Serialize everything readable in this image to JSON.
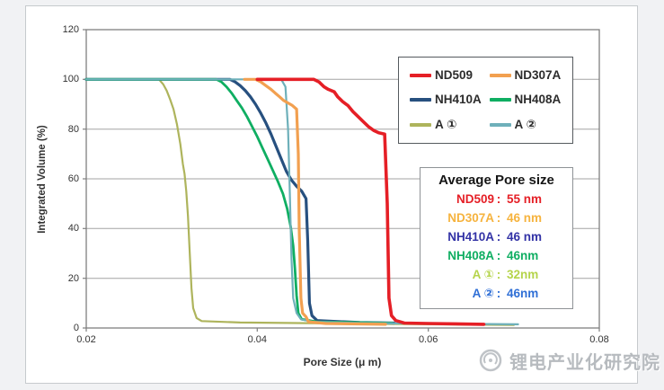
{
  "page": {
    "background": "#f1f2f4",
    "panel_background": "#ffffff"
  },
  "watermark": {
    "text": "锂电产业化研究院",
    "color": "#b7bbbf",
    "logo": "circular-swirl-emblem"
  },
  "chart_data": {
    "type": "line",
    "title": "",
    "xlabel": "Pore Size (μ m)",
    "ylabel": "Integrated Volume (%)",
    "xlim": [
      0.02,
      0.08
    ],
    "ylim": [
      0,
      120
    ],
    "x_ticks": [
      0.02,
      0.04,
      0.06,
      0.08
    ],
    "x_tick_labels": [
      "0.02",
      "0.04",
      "0.06",
      "0.08"
    ],
    "y_ticks": [
      0,
      20,
      40,
      60,
      80,
      100,
      120
    ],
    "y_tick_labels": [
      "0",
      "20",
      "40",
      "60",
      "80",
      "100",
      "120"
    ],
    "grid": "horizontal-only",
    "legend_position": "top-right-inside",
    "series": [
      {
        "name": "A ①",
        "color": "#aeb45c",
        "width": 2.2,
        "points": [
          [
            0.02,
            100
          ],
          [
            0.0285,
            100
          ],
          [
            0.029,
            98
          ],
          [
            0.0294,
            95.5
          ],
          [
            0.0298,
            92
          ],
          [
            0.0302,
            88
          ],
          [
            0.0306,
            82
          ],
          [
            0.031,
            74
          ],
          [
            0.0313,
            66
          ],
          [
            0.0315,
            62
          ],
          [
            0.0317,
            55
          ],
          [
            0.0319,
            45
          ],
          [
            0.0321,
            30
          ],
          [
            0.0323,
            16
          ],
          [
            0.0325,
            8
          ],
          [
            0.0329,
            4
          ],
          [
            0.0335,
            2.8
          ],
          [
            0.038,
            2.2
          ],
          [
            0.05,
            1.8
          ],
          [
            0.07,
            1.2
          ]
        ]
      },
      {
        "name": "NH410A",
        "color": "#27507f",
        "width": 3.2,
        "points": [
          [
            0.02,
            100
          ],
          [
            0.0368,
            100
          ],
          [
            0.0374,
            99
          ],
          [
            0.038,
            97.5
          ],
          [
            0.0386,
            95.5
          ],
          [
            0.0392,
            93
          ],
          [
            0.0398,
            90
          ],
          [
            0.0404,
            86.5
          ],
          [
            0.041,
            82.5
          ],
          [
            0.0416,
            78
          ],
          [
            0.0422,
            73
          ],
          [
            0.0428,
            68
          ],
          [
            0.0434,
            63
          ],
          [
            0.044,
            59.5
          ],
          [
            0.0446,
            57
          ],
          [
            0.0452,
            55
          ],
          [
            0.0457,
            52
          ],
          [
            0.0459,
            35
          ],
          [
            0.0461,
            10
          ],
          [
            0.0464,
            5
          ],
          [
            0.047,
            3
          ],
          [
            0.052,
            2.2
          ],
          [
            0.056,
            2
          ]
        ]
      },
      {
        "name": "NH408A",
        "color": "#0fae62",
        "width": 2.8,
        "points": [
          [
            0.02,
            100
          ],
          [
            0.0352,
            100
          ],
          [
            0.0358,
            99
          ],
          [
            0.0364,
            97
          ],
          [
            0.037,
            94.5
          ],
          [
            0.0376,
            91.5
          ],
          [
            0.0382,
            88.5
          ],
          [
            0.0388,
            85
          ],
          [
            0.0394,
            81
          ],
          [
            0.04,
            77
          ],
          [
            0.0406,
            72.5
          ],
          [
            0.0412,
            68
          ],
          [
            0.0418,
            63.5
          ],
          [
            0.0424,
            59
          ],
          [
            0.043,
            54
          ],
          [
            0.0435,
            48
          ],
          [
            0.0439,
            41
          ],
          [
            0.0442,
            33
          ],
          [
            0.0444,
            24
          ],
          [
            0.0446,
            13
          ],
          [
            0.0448,
            6
          ],
          [
            0.0452,
            3.5
          ],
          [
            0.047,
            2.5
          ],
          [
            0.0558,
            2
          ]
        ]
      },
      {
        "name": "A ②",
        "color": "#6eb0ba",
        "width": 2.2,
        "points": [
          [
            0.02,
            100
          ],
          [
            0.0428,
            100
          ],
          [
            0.0433,
            97
          ],
          [
            0.0436,
            80
          ],
          [
            0.0438,
            55
          ],
          [
            0.044,
            28
          ],
          [
            0.0442,
            12
          ],
          [
            0.0446,
            6
          ],
          [
            0.0451,
            3.5
          ],
          [
            0.0465,
            2.5
          ],
          [
            0.052,
            2
          ],
          [
            0.0705,
            1.5
          ]
        ]
      },
      {
        "name": "ND307A",
        "color": "#f2a050",
        "width": 3.2,
        "points": [
          [
            0.0385,
            100
          ],
          [
            0.0398,
            100
          ],
          [
            0.0404,
            99
          ],
          [
            0.041,
            97.5
          ],
          [
            0.0416,
            96
          ],
          [
            0.0421,
            94.5
          ],
          [
            0.0426,
            93
          ],
          [
            0.0431,
            91.5
          ],
          [
            0.0436,
            90.5
          ],
          [
            0.0441,
            89.5
          ],
          [
            0.0446,
            88
          ],
          [
            0.0448,
            70
          ],
          [
            0.0449,
            40
          ],
          [
            0.0451,
            12
          ],
          [
            0.0453,
            6
          ],
          [
            0.0457,
            4.5
          ],
          [
            0.046,
            2.5
          ],
          [
            0.048,
            1.8
          ],
          [
            0.055,
            1.5
          ]
        ]
      },
      {
        "name": "ND509",
        "color": "#e51f26",
        "width": 3.6,
        "points": [
          [
            0.04,
            100
          ],
          [
            0.0466,
            100
          ],
          [
            0.0472,
            99
          ],
          [
            0.0478,
            97
          ],
          [
            0.0483,
            96
          ],
          [
            0.049,
            95
          ],
          [
            0.0494,
            93
          ],
          [
            0.05,
            91
          ],
          [
            0.0506,
            89.5
          ],
          [
            0.0512,
            87
          ],
          [
            0.0518,
            85
          ],
          [
            0.0524,
            83
          ],
          [
            0.053,
            81
          ],
          [
            0.0536,
            79.5
          ],
          [
            0.0542,
            78.5
          ],
          [
            0.0549,
            78
          ],
          [
            0.0552,
            50
          ],
          [
            0.0554,
            12
          ],
          [
            0.0557,
            5
          ],
          [
            0.0562,
            3
          ],
          [
            0.0572,
            2
          ],
          [
            0.06,
            1.8
          ],
          [
            0.0665,
            1.5
          ]
        ]
      }
    ],
    "legend_entries": [
      "ND509",
      "ND307A",
      "NH410A",
      "NH408A",
      "A ①",
      "A ②"
    ],
    "legend_colors": [
      "#e51f26",
      "#f2a050",
      "#27507f",
      "#0fae62",
      "#aeb45c",
      "#6eb0ba"
    ]
  },
  "avg_table": {
    "title": "Average Pore size",
    "rows": [
      {
        "name": "ND509",
        "value": "55 nm",
        "color": "#e51f26"
      },
      {
        "name": "ND307A",
        "value": "46 nm",
        "color": "#f6b33e"
      },
      {
        "name": "NH410A",
        "value": "46 nm",
        "color": "#3333a6"
      },
      {
        "name": "NH408A",
        "value": "46nm",
        "color": "#0fae62"
      },
      {
        "name": "A ①",
        "value": "32nm",
        "color": "#b5d44b"
      },
      {
        "name": "A ②",
        "value": "46nm",
        "color": "#2f6fd6"
      }
    ]
  }
}
